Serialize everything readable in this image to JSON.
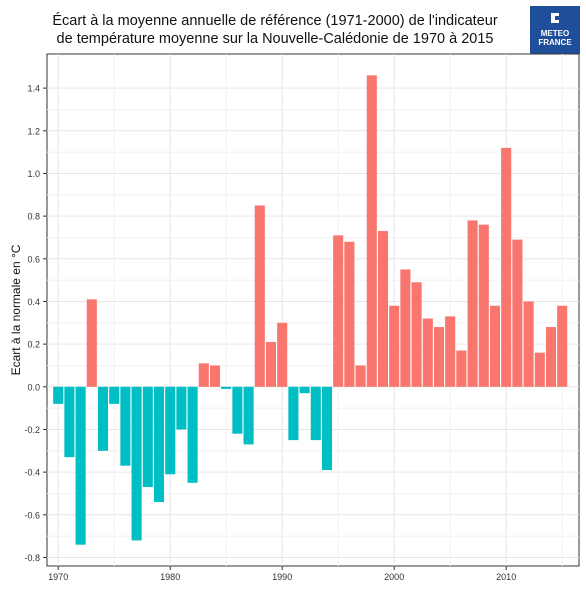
{
  "title_line1": "Écart à la moyenne annuelle de référence (1971-2000) de l'indicateur",
  "title_line2": "de température moyenne sur la Nouvelle-Calédonie de 1970 à 2015",
  "logo": {
    "line1": "METEO",
    "line2": "FRANCE",
    "color": "#1f4f9a"
  },
  "chart_data": {
    "type": "bar",
    "title": "Écart à la moyenne annuelle de référence (1971-2000) de l'indicateur de température moyenne sur la Nouvelle-Calédonie de 1970 à 2015",
    "xlabel": "",
    "ylabel": "Ecart à la normale en °C",
    "x": [
      1970,
      1971,
      1972,
      1973,
      1974,
      1975,
      1976,
      1977,
      1978,
      1979,
      1980,
      1981,
      1982,
      1983,
      1984,
      1985,
      1986,
      1987,
      1988,
      1989,
      1990,
      1991,
      1992,
      1993,
      1994,
      1995,
      1996,
      1997,
      1998,
      1999,
      2000,
      2001,
      2002,
      2003,
      2004,
      2005,
      2006,
      2007,
      2008,
      2009,
      2010,
      2011,
      2012,
      2013,
      2014,
      2015
    ],
    "values": [
      -0.08,
      -0.33,
      -0.74,
      0.41,
      -0.3,
      -0.08,
      -0.37,
      -0.72,
      -0.47,
      -0.54,
      -0.41,
      -0.2,
      -0.45,
      0.11,
      0.1,
      -0.01,
      -0.22,
      -0.27,
      0.85,
      0.21,
      0.3,
      -0.25,
      -0.03,
      -0.25,
      -0.39,
      0.71,
      0.68,
      0.1,
      1.46,
      0.73,
      0.38,
      0.55,
      0.49,
      0.32,
      0.28,
      0.33,
      0.17,
      0.78,
      0.76,
      0.38,
      1.12,
      0.69,
      0.4,
      0.16,
      0.28,
      0.38
    ],
    "xticks": [
      "1970",
      "1980",
      "1990",
      "2000",
      "2010"
    ],
    "xtick_values": [
      1970,
      1980,
      1990,
      2000,
      2010
    ],
    "yticks": [
      "-0.8",
      "-0.6",
      "-0.4",
      "-0.2",
      "0.0",
      "0.2",
      "0.4",
      "0.6",
      "0.8",
      "1.0",
      "1.2",
      "1.4"
    ],
    "ytick_values": [
      -0.8,
      -0.6,
      -0.4,
      -0.2,
      0.0,
      0.2,
      0.4,
      0.6,
      0.8,
      1.0,
      1.2,
      1.4
    ],
    "xlim": [
      1969,
      2016.5
    ],
    "ylim": [
      -0.84,
      1.56
    ],
    "grid": true,
    "positive_color": "#f8766d",
    "negative_color": "#00bfc4"
  }
}
